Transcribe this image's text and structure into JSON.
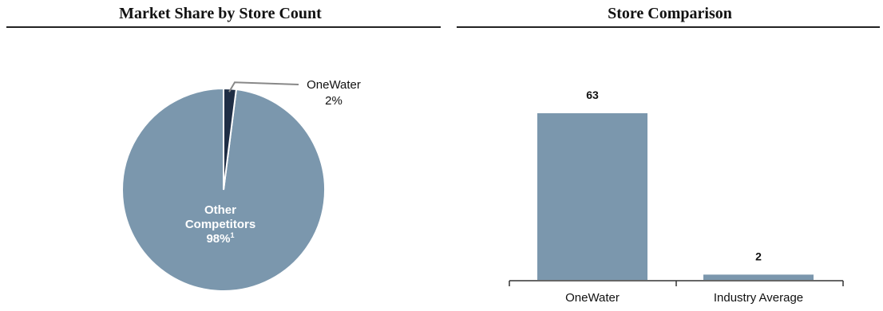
{
  "chart_data": [
    {
      "type": "pie",
      "title": "Market Share by Store Count",
      "slices": [
        {
          "label": "OneWater",
          "value": 2,
          "value_label": "2%",
          "color": "#1f2e45"
        },
        {
          "label_lines": [
            "Other",
            "Competitors"
          ],
          "value": 98,
          "value_label": "98%",
          "footnote": "1",
          "color": "#7b97ad"
        }
      ]
    },
    {
      "type": "bar",
      "title": "Store Comparison",
      "categories": [
        "OneWater",
        "Industry Average"
      ],
      "values": [
        63,
        2
      ],
      "data_labels": [
        "63",
        "2"
      ],
      "bar_color": "#7b97ad",
      "ylim": [
        0,
        63
      ]
    }
  ]
}
